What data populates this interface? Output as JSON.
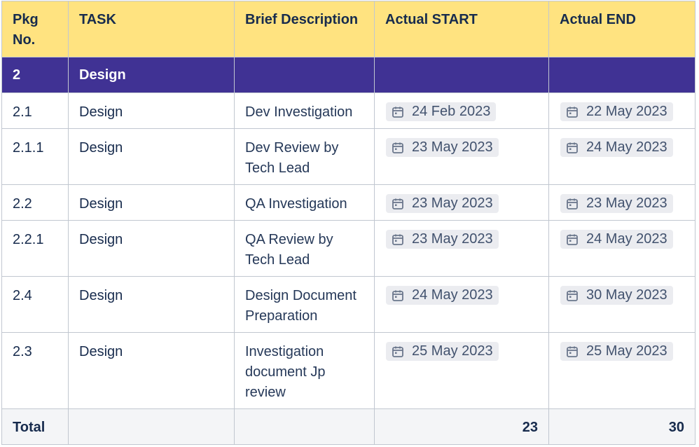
{
  "table": {
    "headers": [
      "Pkg No.",
      "TASK",
      "Brief Description",
      "Actual START",
      "Actual END"
    ],
    "section": {
      "pkg": "2",
      "task": "Design"
    },
    "rows": [
      {
        "pkg": "2.1",
        "task": "Design",
        "desc": "Dev Investigation",
        "start": "24 Feb 2023",
        "end": "22 May 2023"
      },
      {
        "pkg": "2.1.1",
        "task": "Design",
        "desc": "Dev Review by Tech Lead",
        "start": "23 May 2023",
        "end": "24 May 2023"
      },
      {
        "pkg": "2.2",
        "task": "Design",
        "desc": "QA Investigation",
        "start": "23 May 2023",
        "end": "23 May 2023"
      },
      {
        "pkg": "2.2.1",
        "task": "Design",
        "desc": "QA Review by Tech Lead",
        "start": "23 May 2023",
        "end": "24 May 2023"
      },
      {
        "pkg": "2.4",
        "task": "Design",
        "desc": "Design Document Preparation",
        "start": "24 May 2023",
        "end": "30 May 2023"
      },
      {
        "pkg": "2.3",
        "task": "Design",
        "desc": "Investigation document Jp review",
        "start": "25 May 2023",
        "end": "25 May 2023"
      }
    ],
    "total": {
      "label": "Total",
      "start": "23",
      "end": "30"
    }
  },
  "icons": {
    "date": "calendar-icon"
  },
  "colors": {
    "header_bg": "#ffe380",
    "section_bg": "#403294",
    "chip_bg": "#ebecf0",
    "total_bg": "#f4f5f7"
  }
}
